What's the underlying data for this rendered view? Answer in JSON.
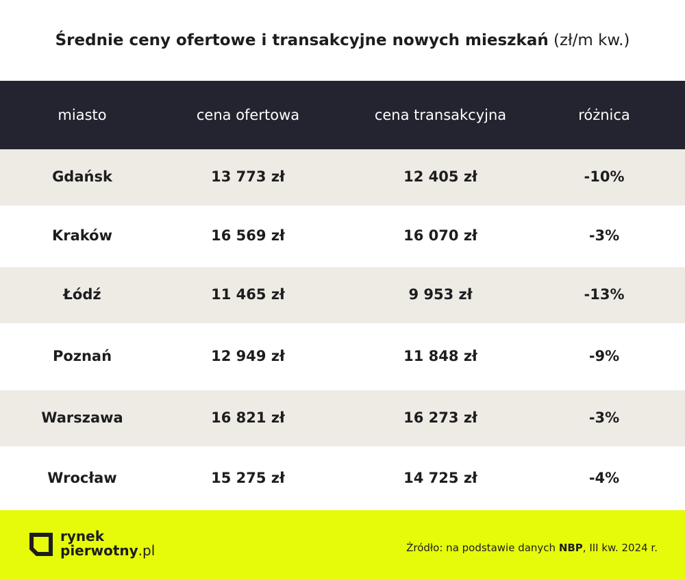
{
  "header": {
    "title_bold": "Średnie ceny ofertowe i transakcyjne nowych mieszkań",
    "title_unit": "(zł/m kw.)"
  },
  "table": {
    "columns": [
      "miasto",
      "cena ofertowa",
      "cena transakcyjna",
      "różnica"
    ],
    "rows": [
      [
        "Gdańsk",
        "13 773 zł",
        "12 405 zł",
        "-10%"
      ],
      [
        "Kraków",
        "16 569 zł",
        "16 070 zł",
        "-3%"
      ],
      [
        "Łódź",
        "11 465 zł",
        "9 953 zł",
        "-13%"
      ],
      [
        "Poznań",
        "12 949 zł",
        "11 848 zł",
        "-9%"
      ],
      [
        "Warszawa",
        "16 821 zł",
        "16 273 zł",
        "-3%"
      ],
      [
        "Wrocław",
        "15 275 zł",
        "14 725 zł",
        "-4%"
      ]
    ]
  },
  "footer": {
    "logo": [
      "rynek",
      "pierwotny",
      ".pl"
    ],
    "source": [
      "Źródło: na podstawie danych ",
      "NBP",
      ", III kw. 2024 r."
    ]
  }
}
